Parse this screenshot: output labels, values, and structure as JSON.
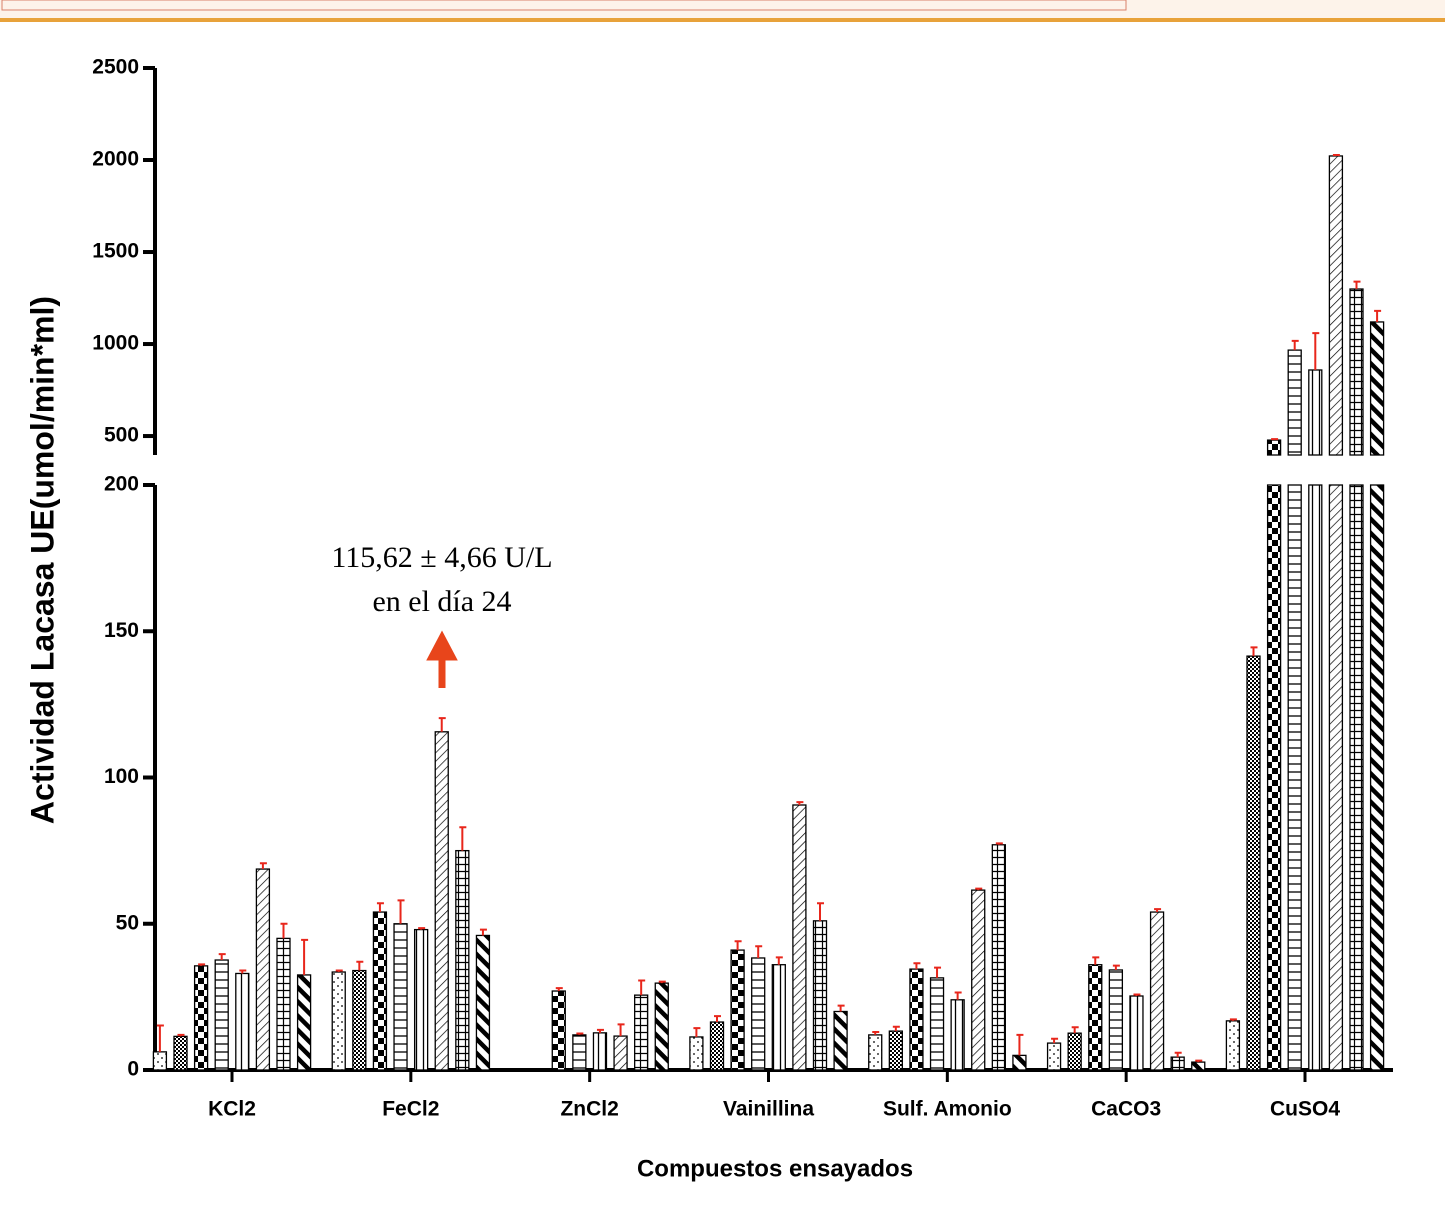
{
  "chart_data": {
    "type": "bar",
    "y_label": "Actividad Lacasa UE(umol/min*ml)",
    "x_label": "Compuestos ensayados",
    "annotation": [
      "115,62 ± 4,66 U/L",
      "en el día 24"
    ],
    "categories": [
      "KCl2",
      "FeCl2",
      "ZnCl2",
      "Vainillina",
      "Sulf. Amonio",
      "CaCO3",
      "CuSO4"
    ],
    "ylim_lower": [
      0,
      200
    ],
    "yticks_lower": [
      0,
      50,
      100,
      150,
      200
    ],
    "ylim_upper": [
      397,
      2500
    ],
    "yticks_upper": [
      500,
      1000,
      1500,
      2000,
      2500
    ],
    "error_color": "#e8261b",
    "series": [
      {
        "values": [
          6.2,
          33.5,
          null,
          11.3,
          12,
          9.2,
          16.8
        ],
        "errors": [
          9,
          0.5,
          null,
          3,
          1,
          1.5,
          0.5
        ]
      },
      {
        "values": [
          11.5,
          34,
          null,
          16.4,
          13.3,
          12.6,
          141.5
        ],
        "errors": [
          0.5,
          3,
          null,
          2,
          1.5,
          2,
          3
        ]
      },
      {
        "values": [
          35.6,
          54,
          27,
          41,
          34.5,
          36,
          478
        ],
        "errors": [
          0.5,
          3,
          1,
          3,
          2,
          2.5,
          5
        ]
      },
      {
        "values": [
          37.6,
          50,
          12,
          38.3,
          31.5,
          34.2,
          967
        ],
        "errors": [
          2,
          8,
          0.5,
          4,
          3.5,
          1.5,
          50
        ]
      },
      {
        "values": [
          33,
          48,
          12.7,
          36,
          24,
          25.3,
          859
        ],
        "errors": [
          1,
          0.5,
          1,
          2.5,
          2.5,
          0.5,
          200
        ]
      },
      {
        "values": [
          68.7,
          115.62,
          11.6,
          90.6,
          61.5,
          54,
          2022
        ],
        "errors": [
          2,
          4.66,
          4,
          1,
          0.5,
          1,
          5
        ]
      },
      {
        "values": [
          45,
          75,
          25.6,
          51,
          77,
          4.4,
          1299
        ],
        "errors": [
          5,
          8,
          5,
          6,
          0.5,
          1.5,
          40
        ]
      },
      {
        "values": [
          32.5,
          46,
          29.7,
          20,
          5,
          2.7,
          1120
        ],
        "errors": [
          12,
          2,
          0.5,
          2,
          7,
          0.5,
          60
        ]
      }
    ]
  }
}
